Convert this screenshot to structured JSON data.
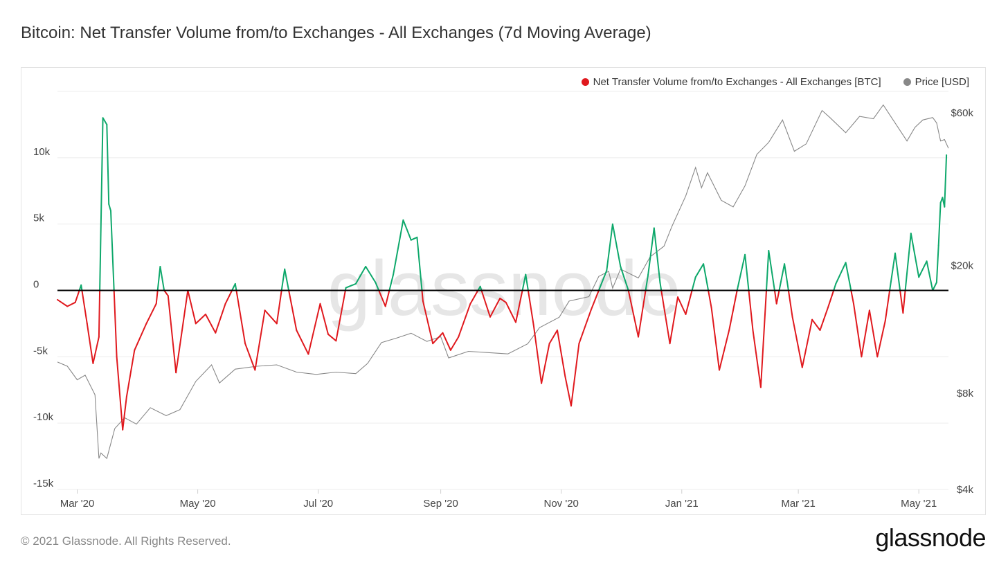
{
  "title": "Bitcoin: Net Transfer Volume from/to Exchanges - All Exchanges (7d Moving Average)",
  "footer": {
    "copyright": "© 2021 Glassnode. All Rights Reserved.",
    "logo_text": "glassnode"
  },
  "colors": {
    "positive": "#0ea86b",
    "negative": "#e0191e",
    "price": "#888888",
    "zero_line": "#000000",
    "grid": "#ececec"
  },
  "chart_data": {
    "type": "line",
    "watermark": "glassnode",
    "legend": [
      {
        "label": "Net Transfer Volume from/to Exchanges - All Exchanges [BTC]",
        "color": "#e0191e"
      },
      {
        "label": "Price [USD]",
        "color": "#888888"
      }
    ],
    "legend_position": "top-right",
    "grid": true,
    "x_ticks": [
      "Mar '20",
      "May '20",
      "Jul '20",
      "Sep '20",
      "Nov '20",
      "Jan '21",
      "Mar '21",
      "May '21"
    ],
    "y_left": {
      "ticks": [
        "10k",
        "5k",
        "0",
        "-5k",
        "-10k",
        "-15k"
      ],
      "values": [
        10000,
        5000,
        0,
        -5000,
        -10000,
        -15000
      ],
      "range": [
        -15000,
        15000
      ]
    },
    "y_right": {
      "scale": "log",
      "ticks": [
        "$60k",
        "$20k",
        "$8k",
        "$4k"
      ],
      "values": [
        60000,
        20000,
        8000,
        4000
      ],
      "range": [
        4000,
        70000
      ]
    },
    "x_range": [
      "2020-02-20",
      "2021-05-16"
    ],
    "series": [
      {
        "name": "Net Transfer Volume from/to Exchanges - All Exchanges [BTC]",
        "axis": "left",
        "points": [
          [
            "2020-02-20",
            -700
          ],
          [
            "2020-02-25",
            -1200
          ],
          [
            "2020-02-29",
            -900
          ],
          [
            "2020-03-03",
            400
          ],
          [
            "2020-03-06",
            -2500
          ],
          [
            "2020-03-09",
            -5500
          ],
          [
            "2020-03-12",
            -3500
          ],
          [
            "2020-03-14",
            13000
          ],
          [
            "2020-03-16",
            12500
          ],
          [
            "2020-03-17",
            6500
          ],
          [
            "2020-03-18",
            6000
          ],
          [
            "2020-03-21",
            -5000
          ],
          [
            "2020-03-24",
            -10500
          ],
          [
            "2020-03-26",
            -8000
          ],
          [
            "2020-03-30",
            -4500
          ],
          [
            "2020-04-05",
            -2500
          ],
          [
            "2020-04-10",
            -1000
          ],
          [
            "2020-04-12",
            1800
          ],
          [
            "2020-04-14",
            0
          ],
          [
            "2020-04-16",
            -400
          ],
          [
            "2020-04-20",
            -6200
          ],
          [
            "2020-04-26",
            0
          ],
          [
            "2020-04-30",
            -2500
          ],
          [
            "2020-05-05",
            -1800
          ],
          [
            "2020-05-10",
            -3200
          ],
          [
            "2020-05-15",
            -1000
          ],
          [
            "2020-05-20",
            500
          ],
          [
            "2020-05-25",
            -4000
          ],
          [
            "2020-05-30",
            -6000
          ],
          [
            "2020-06-04",
            -1500
          ],
          [
            "2020-06-10",
            -2500
          ],
          [
            "2020-06-14",
            1600
          ],
          [
            "2020-06-20",
            -3000
          ],
          [
            "2020-06-26",
            -4800
          ],
          [
            "2020-07-02",
            -1000
          ],
          [
            "2020-07-06",
            -3300
          ],
          [
            "2020-07-10",
            -3800
          ],
          [
            "2020-07-15",
            200
          ],
          [
            "2020-07-20",
            500
          ],
          [
            "2020-07-25",
            1800
          ],
          [
            "2020-07-30",
            600
          ],
          [
            "2020-08-04",
            -1200
          ],
          [
            "2020-08-08",
            1200
          ],
          [
            "2020-08-13",
            5300
          ],
          [
            "2020-08-17",
            3800
          ],
          [
            "2020-08-20",
            4000
          ],
          [
            "2020-08-23",
            -800
          ],
          [
            "2020-08-28",
            -4000
          ],
          [
            "2020-09-02",
            -3200
          ],
          [
            "2020-09-06",
            -4500
          ],
          [
            "2020-09-10",
            -3500
          ],
          [
            "2020-09-16",
            -1000
          ],
          [
            "2020-09-21",
            300
          ],
          [
            "2020-09-26",
            -2000
          ],
          [
            "2020-10-01",
            -600
          ],
          [
            "2020-10-04",
            -900
          ],
          [
            "2020-10-09",
            -2400
          ],
          [
            "2020-10-14",
            1200
          ],
          [
            "2020-10-18",
            -2600
          ],
          [
            "2020-10-22",
            -7000
          ],
          [
            "2020-10-26",
            -4000
          ],
          [
            "2020-10-30",
            -3000
          ],
          [
            "2020-11-03",
            -6500
          ],
          [
            "2020-11-06",
            -8700
          ],
          [
            "2020-11-10",
            -4000
          ],
          [
            "2020-11-16",
            -1500
          ],
          [
            "2020-11-20",
            0
          ],
          [
            "2020-11-24",
            1500
          ],
          [
            "2020-11-27",
            5000
          ],
          [
            "2020-12-01",
            1800
          ],
          [
            "2020-12-05",
            0
          ],
          [
            "2020-12-10",
            -3500
          ],
          [
            "2020-12-15",
            1200
          ],
          [
            "2020-12-18",
            4700
          ],
          [
            "2020-12-21",
            600
          ],
          [
            "2020-12-26",
            -4000
          ],
          [
            "2020-12-30",
            -500
          ],
          [
            "2021-01-03",
            -1800
          ],
          [
            "2021-01-08",
            1000
          ],
          [
            "2021-01-12",
            2000
          ],
          [
            "2021-01-16",
            -1300
          ],
          [
            "2021-01-20",
            -6000
          ],
          [
            "2021-01-25",
            -3000
          ],
          [
            "2021-01-29",
            0
          ],
          [
            "2021-02-02",
            2700
          ],
          [
            "2021-02-06",
            -3000
          ],
          [
            "2021-02-10",
            -7300
          ],
          [
            "2021-02-14",
            3000
          ],
          [
            "2021-02-18",
            -1000
          ],
          [
            "2021-02-22",
            2000
          ],
          [
            "2021-02-26",
            -2000
          ],
          [
            "2021-03-03",
            -5800
          ],
          [
            "2021-03-08",
            -2200
          ],
          [
            "2021-03-12",
            -3000
          ],
          [
            "2021-03-16",
            -1300
          ],
          [
            "2021-03-20",
            500
          ],
          [
            "2021-03-25",
            2100
          ],
          [
            "2021-03-29",
            -1000
          ],
          [
            "2021-04-02",
            -5000
          ],
          [
            "2021-04-06",
            -1500
          ],
          [
            "2021-04-10",
            -5000
          ],
          [
            "2021-04-14",
            -2300
          ],
          [
            "2021-04-19",
            2800
          ],
          [
            "2021-04-23",
            -1700
          ],
          [
            "2021-04-27",
            4300
          ],
          [
            "2021-05-01",
            1000
          ],
          [
            "2021-05-05",
            2200
          ],
          [
            "2021-05-08",
            0
          ],
          [
            "2021-05-10",
            600
          ],
          [
            "2021-05-11",
            3400
          ],
          [
            "2021-05-12",
            6600
          ],
          [
            "2021-05-13",
            7000
          ],
          [
            "2021-05-14",
            6300
          ],
          [
            "2021-05-15",
            10200
          ]
        ]
      },
      {
        "name": "Price [USD]",
        "axis": "right",
        "points": [
          [
            "2020-02-20",
            10000
          ],
          [
            "2020-02-25",
            9700
          ],
          [
            "2020-03-01",
            8800
          ],
          [
            "2020-03-05",
            9100
          ],
          [
            "2020-03-10",
            7900
          ],
          [
            "2020-03-12",
            5000
          ],
          [
            "2020-03-13",
            5200
          ],
          [
            "2020-03-16",
            5000
          ],
          [
            "2020-03-20",
            6200
          ],
          [
            "2020-03-25",
            6700
          ],
          [
            "2020-03-31",
            6400
          ],
          [
            "2020-04-07",
            7200
          ],
          [
            "2020-04-15",
            6800
          ],
          [
            "2020-04-22",
            7100
          ],
          [
            "2020-04-30",
            8700
          ],
          [
            "2020-05-08",
            9800
          ],
          [
            "2020-05-12",
            8600
          ],
          [
            "2020-05-20",
            9500
          ],
          [
            "2020-05-31",
            9700
          ],
          [
            "2020-06-10",
            9800
          ],
          [
            "2020-06-20",
            9300
          ],
          [
            "2020-06-30",
            9150
          ],
          [
            "2020-07-10",
            9300
          ],
          [
            "2020-07-20",
            9200
          ],
          [
            "2020-07-26",
            9900
          ],
          [
            "2020-08-02",
            11500
          ],
          [
            "2020-08-10",
            11900
          ],
          [
            "2020-08-17",
            12300
          ],
          [
            "2020-08-25",
            11600
          ],
          [
            "2020-09-01",
            12000
          ],
          [
            "2020-09-05",
            10300
          ],
          [
            "2020-09-15",
            10800
          ],
          [
            "2020-09-25",
            10700
          ],
          [
            "2020-10-05",
            10600
          ],
          [
            "2020-10-15",
            11400
          ],
          [
            "2020-10-21",
            12800
          ],
          [
            "2020-10-31",
            13800
          ],
          [
            "2020-11-05",
            15500
          ],
          [
            "2020-11-15",
            16000
          ],
          [
            "2020-11-20",
            18500
          ],
          [
            "2020-11-25",
            19200
          ],
          [
            "2020-11-27",
            17000
          ],
          [
            "2020-12-01",
            19500
          ],
          [
            "2020-12-10",
            18300
          ],
          [
            "2020-12-16",
            21300
          ],
          [
            "2020-12-23",
            23000
          ],
          [
            "2020-12-27",
            26500
          ],
          [
            "2021-01-03",
            33000
          ],
          [
            "2021-01-08",
            40500
          ],
          [
            "2021-01-11",
            35000
          ],
          [
            "2021-01-14",
            39000
          ],
          [
            "2021-01-21",
            32000
          ],
          [
            "2021-01-27",
            30500
          ],
          [
            "2021-02-02",
            35500
          ],
          [
            "2021-02-08",
            44500
          ],
          [
            "2021-02-14",
            48500
          ],
          [
            "2021-02-21",
            57000
          ],
          [
            "2021-02-27",
            45500
          ],
          [
            "2021-03-05",
            48000
          ],
          [
            "2021-03-13",
            61000
          ],
          [
            "2021-03-17",
            58000
          ],
          [
            "2021-03-25",
            52000
          ],
          [
            "2021-04-01",
            58500
          ],
          [
            "2021-04-08",
            57500
          ],
          [
            "2021-04-13",
            63500
          ],
          [
            "2021-04-18",
            57000
          ],
          [
            "2021-04-25",
            49000
          ],
          [
            "2021-04-29",
            54000
          ],
          [
            "2021-05-03",
            57000
          ],
          [
            "2021-05-08",
            58000
          ],
          [
            "2021-05-10",
            55800
          ],
          [
            "2021-05-12",
            49000
          ],
          [
            "2021-05-14",
            49500
          ],
          [
            "2021-05-16",
            46500
          ]
        ]
      }
    ]
  }
}
